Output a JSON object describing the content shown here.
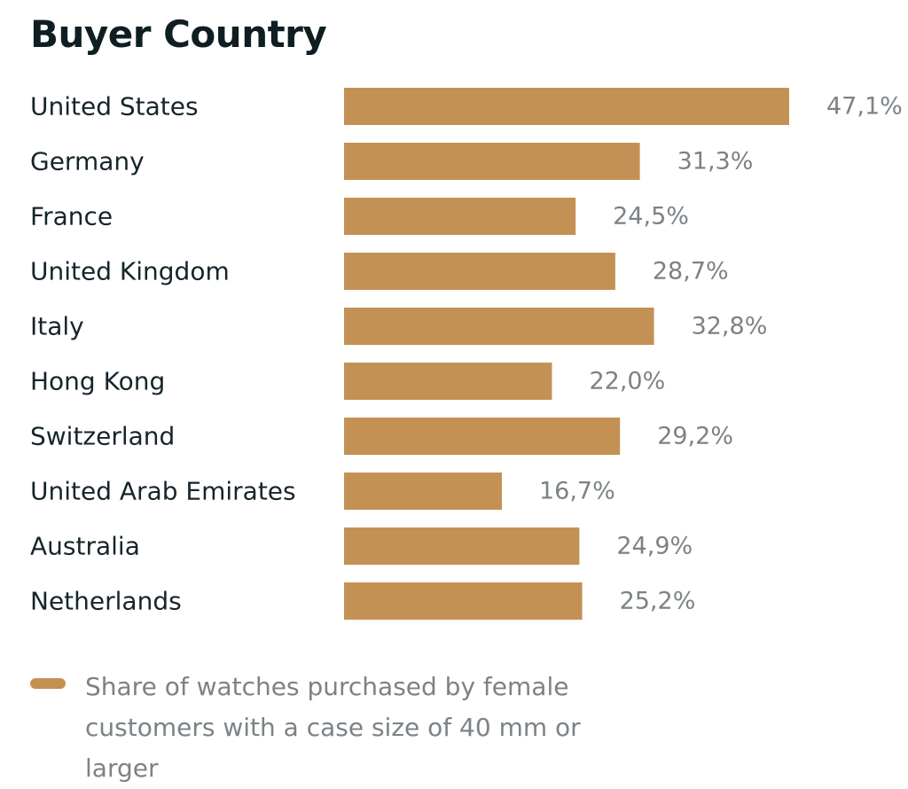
{
  "chart_data": {
    "type": "bar",
    "orientation": "horizontal",
    "title": "Buyer Country",
    "categories": [
      "United States",
      "Germany",
      "France",
      "United Kingdom",
      "Italy",
      "Hong Kong",
      "Switzerland",
      "United Arab Emirates",
      "Australia",
      "Netherlands"
    ],
    "values": [
      47.1,
      31.3,
      24.5,
      28.7,
      32.8,
      22.0,
      29.2,
      16.7,
      24.9,
      25.2
    ],
    "value_labels": [
      "47,1%",
      "31,3%",
      "24,5%",
      "28,7%",
      "32,8%",
      "22,0%",
      "29,2%",
      "16,7%",
      "24,9%",
      "25,2%"
    ],
    "unit": "%",
    "xlim": [
      0,
      47.1
    ],
    "grid": false,
    "legend": {
      "position": "bottom-left",
      "label": "Share of watches purchased by female customers with a case size of 40 mm or larger"
    },
    "colors": {
      "bar": "#c49154",
      "category_text": "#16252a",
      "value_text": "#7c8286",
      "title_text": "#0f1e22"
    }
  }
}
